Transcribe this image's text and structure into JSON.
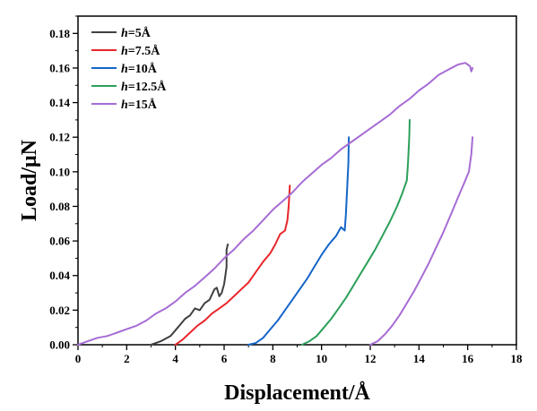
{
  "chart_data": {
    "type": "line",
    "title": "",
    "xlabel": "Displacement/Å",
    "ylabel": "Load/μN",
    "xlim": [
      0,
      18
    ],
    "ylim": [
      0,
      0.19
    ],
    "x_ticks": [
      "0",
      "2",
      "4",
      "6",
      "8",
      "10",
      "12",
      "14",
      "16",
      "18"
    ],
    "y_ticks": [
      "0.00",
      "0.02",
      "0.04",
      "0.06",
      "0.08",
      "0.10",
      "0.12",
      "0.14",
      "0.16",
      "0.18"
    ],
    "grid": false,
    "legend_position": "top-left",
    "series": [
      {
        "name": "h=5Å",
        "name_italic": "h",
        "name_rest": "=5Å",
        "color": "#404040",
        "x": [
          3.0,
          3.4,
          3.8,
          4.1,
          4.4,
          4.6,
          4.8,
          5.0,
          5.2,
          5.4,
          5.6,
          5.7,
          5.8,
          5.9,
          6.0,
          6.05,
          6.1,
          6.1,
          6.15
        ],
        "y": [
          0.0,
          0.002,
          0.005,
          0.01,
          0.015,
          0.017,
          0.021,
          0.02,
          0.024,
          0.026,
          0.032,
          0.033,
          0.028,
          0.03,
          0.035,
          0.04,
          0.045,
          0.055,
          0.058
        ]
      },
      {
        "name": "h=7.5Å",
        "name_italic": "h",
        "name_rest": "=7.5Å",
        "color": "#e8262a",
        "x": [
          4.0,
          4.3,
          4.6,
          4.9,
          5.2,
          5.5,
          5.8,
          6.1,
          6.4,
          6.7,
          7.0,
          7.3,
          7.6,
          7.9,
          8.1,
          8.3,
          8.5,
          8.6,
          8.65,
          8.7
        ],
        "y": [
          0.0,
          0.003,
          0.007,
          0.011,
          0.014,
          0.018,
          0.021,
          0.024,
          0.028,
          0.032,
          0.036,
          0.042,
          0.048,
          0.053,
          0.058,
          0.064,
          0.066,
          0.072,
          0.08,
          0.092
        ]
      },
      {
        "name": "h=10Å",
        "name_italic": "h",
        "name_rest": "=10Å",
        "color": "#1565c8",
        "x": [
          7.0,
          7.3,
          7.6,
          7.9,
          8.2,
          8.5,
          8.8,
          9.1,
          9.4,
          9.7,
          10.0,
          10.3,
          10.6,
          10.8,
          10.95,
          11.0,
          11.05,
          11.1,
          11.12
        ],
        "y": [
          0.0,
          0.001,
          0.004,
          0.009,
          0.014,
          0.02,
          0.026,
          0.032,
          0.038,
          0.045,
          0.052,
          0.058,
          0.063,
          0.068,
          0.066,
          0.075,
          0.09,
          0.105,
          0.12
        ]
      },
      {
        "name": "h=12.5Å",
        "name_italic": "h",
        "name_rest": "=12.5Å",
        "color": "#2ca05a",
        "x": [
          9.2,
          9.5,
          9.8,
          10.1,
          10.4,
          10.7,
          11.0,
          11.3,
          11.6,
          11.9,
          12.2,
          12.5,
          12.8,
          13.1,
          13.3,
          13.5,
          13.55,
          13.6,
          13.62
        ],
        "y": [
          0.0,
          0.002,
          0.005,
          0.01,
          0.015,
          0.021,
          0.027,
          0.034,
          0.041,
          0.048,
          0.055,
          0.063,
          0.071,
          0.08,
          0.087,
          0.095,
          0.105,
          0.12,
          0.13
        ]
      },
      {
        "name": "h=15Å",
        "name_italic": "h",
        "name_rest": "=15Å",
        "color": "#a66cd4",
        "x": [
          0.0,
          0.4,
          0.8,
          1.2,
          1.6,
          2.0,
          2.4,
          2.8,
          3.2,
          3.6,
          4.0,
          4.4,
          4.8,
          5.2,
          5.6,
          6.0,
          6.4,
          6.8,
          7.2,
          7.6,
          8.0,
          8.4,
          8.8,
          9.2,
          9.6,
          10.0,
          10.4,
          10.8,
          11.2,
          11.6,
          12.0,
          12.4,
          12.8,
          13.2,
          13.6,
          14.0,
          14.4,
          14.8,
          15.2,
          15.6,
          15.9,
          16.1,
          16.15,
          16.2
        ],
        "y": [
          0.0,
          0.002,
          0.004,
          0.005,
          0.007,
          0.009,
          0.011,
          0.014,
          0.018,
          0.021,
          0.025,
          0.03,
          0.034,
          0.039,
          0.044,
          0.05,
          0.055,
          0.061,
          0.066,
          0.072,
          0.078,
          0.083,
          0.088,
          0.094,
          0.099,
          0.104,
          0.108,
          0.113,
          0.117,
          0.121,
          0.125,
          0.129,
          0.133,
          0.138,
          0.142,
          0.147,
          0.151,
          0.156,
          0.159,
          0.162,
          0.163,
          0.161,
          0.158,
          0.16
        ]
      },
      {
        "name": "",
        "color": "#a66cd4",
        "x": [
          12.0,
          12.3,
          12.6,
          12.9,
          13.2,
          13.5,
          13.8,
          14.1,
          14.4,
          14.7,
          15.0,
          15.3,
          15.6,
          15.9,
          16.05,
          16.15,
          16.2
        ],
        "y": [
          0.0,
          0.002,
          0.006,
          0.011,
          0.017,
          0.024,
          0.031,
          0.039,
          0.047,
          0.056,
          0.065,
          0.075,
          0.085,
          0.095,
          0.1,
          0.11,
          0.12
        ]
      }
    ]
  }
}
